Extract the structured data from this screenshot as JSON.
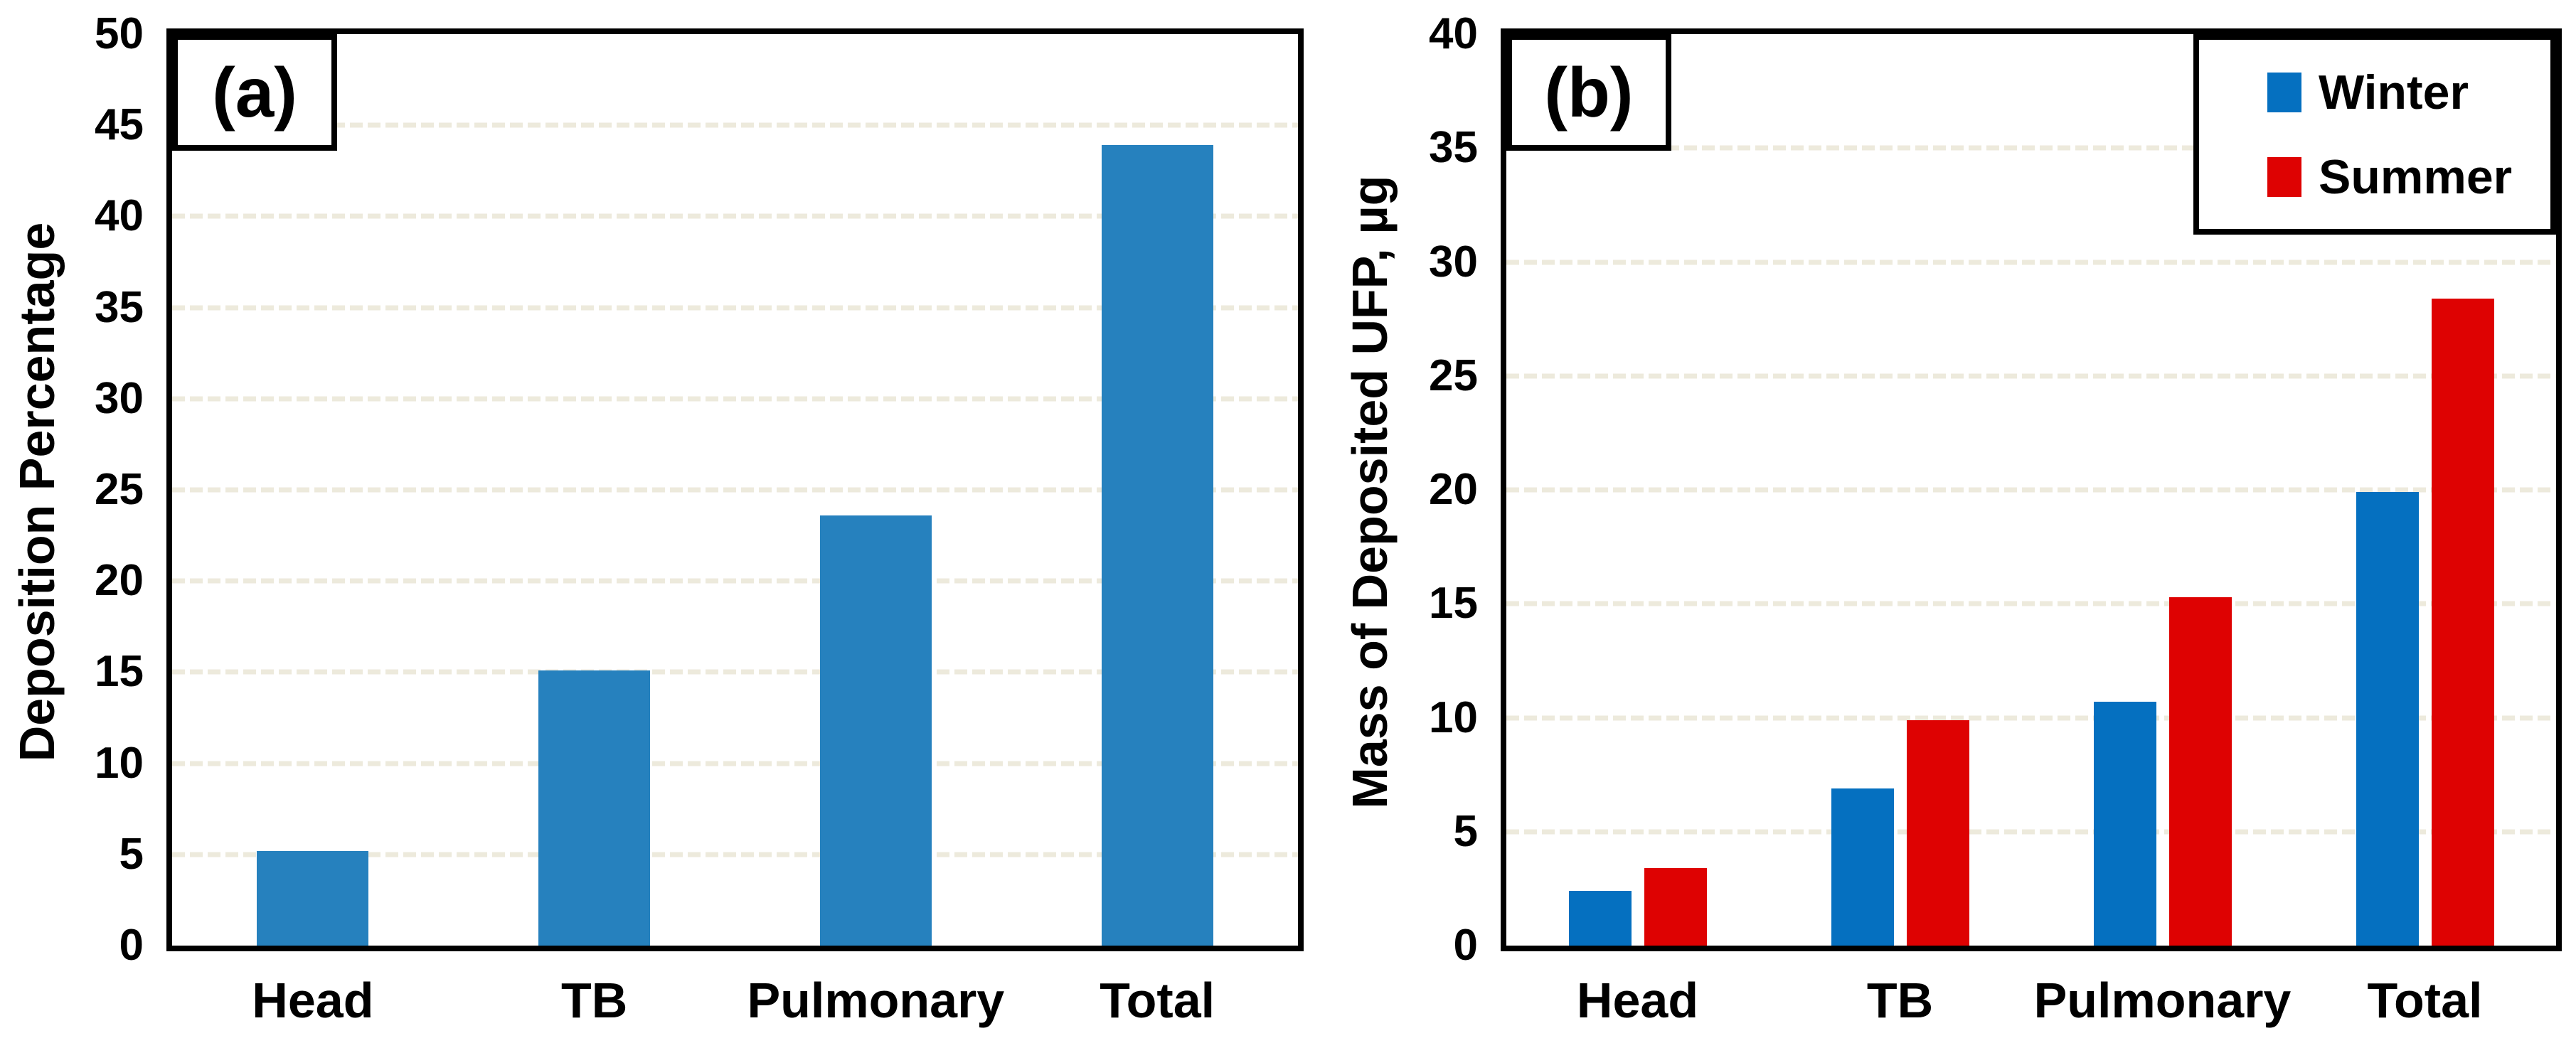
{
  "figure": {
    "background": "#FFFFFF",
    "axis_color": "#000000",
    "gridline_color": "#EDEADC",
    "gridline_style": "dashed horizontal"
  },
  "chart_data": [
    {
      "type": "bar",
      "panel_label": "(a)",
      "title": "",
      "xlabel": "",
      "ylabel": "Deposition Percentage",
      "categories": [
        "Head",
        "TB",
        "Pulmonary",
        "Total"
      ],
      "series": [
        {
          "name": "Deposition Percentage",
          "color": "#2681BE",
          "values": [
            5.2,
            15.1,
            23.6,
            43.9
          ]
        }
      ],
      "ylim": [
        0,
        50
      ],
      "ytick_step": 5,
      "yticks": [
        0,
        5,
        10,
        15,
        20,
        25,
        30,
        35,
        40,
        45,
        50
      ],
      "grid": "horizontal dashed",
      "legend": null
    },
    {
      "type": "bar",
      "panel_label": "(b)",
      "title": "",
      "xlabel": "",
      "ylabel": "Mass of Deposited UFP, µg",
      "categories": [
        "Head",
        "TB",
        "Pulmonary",
        "Total"
      ],
      "series": [
        {
          "name": "Winter",
          "color": "#0570C0",
          "values": [
            2.4,
            6.9,
            10.7,
            19.9
          ]
        },
        {
          "name": "Summer",
          "color": "#DE0202",
          "values": [
            3.4,
            9.9,
            15.3,
            28.4
          ]
        }
      ],
      "ylim": [
        0,
        40
      ],
      "ytick_step": 5,
      "yticks": [
        0,
        5,
        10,
        15,
        20,
        25,
        30,
        35,
        40
      ],
      "grid": "horizontal dashed",
      "legend": {
        "position": "top-right",
        "entries": [
          "Winter",
          "Summer"
        ]
      }
    }
  ]
}
